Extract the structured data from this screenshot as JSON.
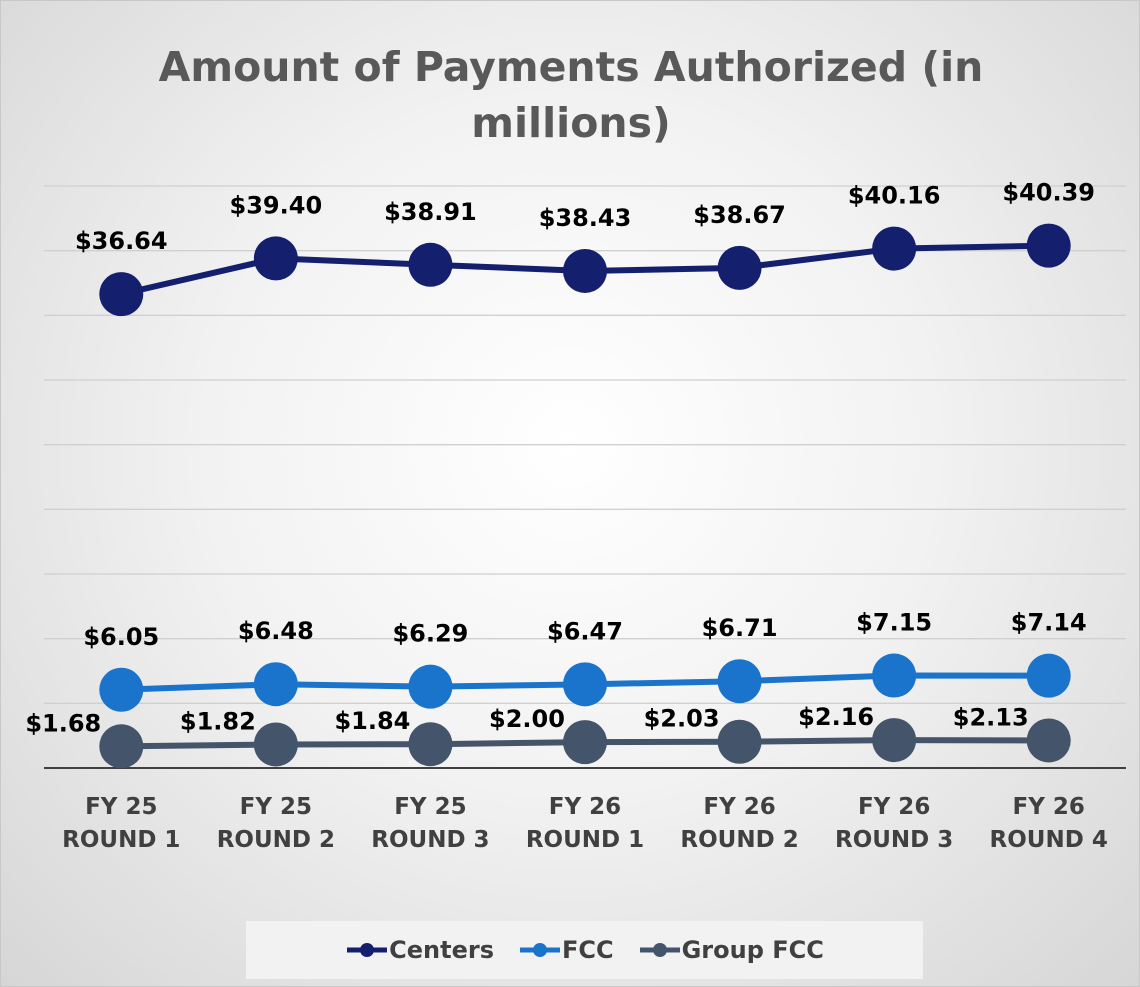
{
  "chart_data": {
    "type": "line",
    "title": "Amount of Payments Authorized (in millions)",
    "categories": [
      "FY 25 ROUND 1",
      "FY 25 ROUND 2",
      "FY 25 ROUND 3",
      "FY 26 ROUND 1",
      "FY 26 ROUND 2",
      "FY 26 ROUND 3",
      "FY 26 ROUND 4"
    ],
    "series": [
      {
        "name": "Centers",
        "color": "#141f6e",
        "values": [
          36.64,
          39.4,
          38.91,
          38.43,
          38.67,
          40.16,
          40.39
        ],
        "value_labels": [
          "$36.64",
          "$39.40",
          "$38.91",
          "$38.43",
          "$38.67",
          "$40.16",
          "$40.39"
        ]
      },
      {
        "name": "FCC",
        "color": "#1a74cc",
        "values": [
          6.05,
          6.48,
          6.29,
          6.47,
          6.71,
          7.15,
          7.14
        ],
        "value_labels": [
          "$6.05",
          "$6.48",
          "$6.29",
          "$6.47",
          "$6.71",
          "$7.15",
          "$7.14"
        ]
      },
      {
        "name": "Group FCC",
        "color": "#44546a",
        "values": [
          1.68,
          1.82,
          1.84,
          2.0,
          2.03,
          2.16,
          2.13
        ],
        "value_labels": [
          "$1.68",
          "$1.82",
          "$1.84",
          "$2.00",
          "$2.03",
          "$2.16",
          "$2.13"
        ]
      }
    ],
    "ylim": [
      0,
      45
    ],
    "yticks": [
      0,
      5,
      10,
      15,
      20,
      25,
      30,
      35,
      40,
      45
    ],
    "grid": true,
    "legend": "bottom"
  }
}
